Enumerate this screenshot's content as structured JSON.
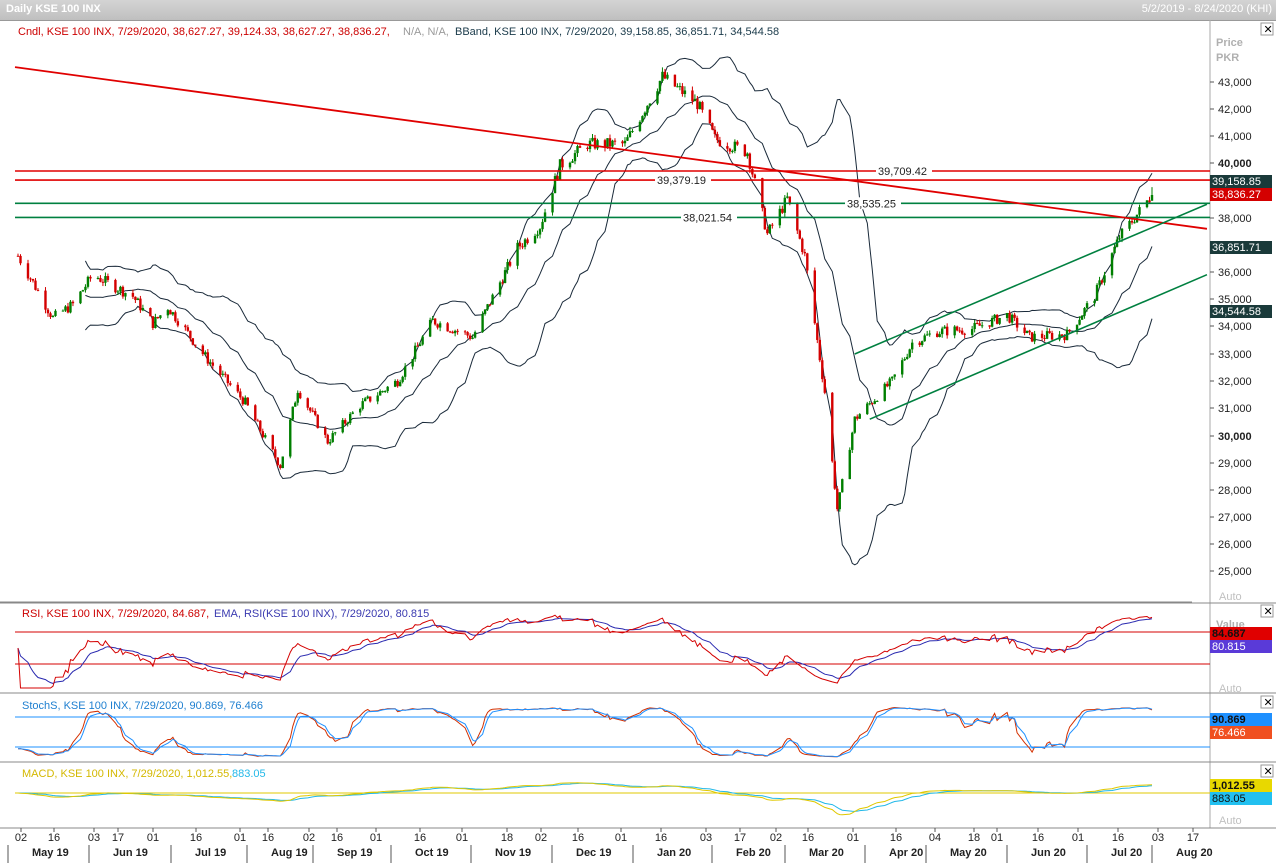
{
  "window": {
    "title": "Daily KSE 100 INX",
    "range": "5/2/2019 - 8/24/2020 (KHI)"
  },
  "legends": {
    "price_cndl": "Cndl, KSE 100 INX, 7/29/2020, 38,627.27, 39,124.33, 38,627.27, 38,836.27,",
    "price_na": "N/A, N/A,",
    "price_bband": "BBand, KSE 100 INX, 7/29/2020, 39,158.85, 36,851.71, 34,544.58",
    "rsi": "RSI, KSE 100 INX, 7/29/2020, 84.687,",
    "rsi_ema": "EMA, RSI(KSE 100 INX), 7/29/2020, 80.815",
    "stoch": "StochS, KSE 100 INX, 7/29/2020, 90.869, 76.466",
    "macd": "MACD, KSE 100 INX, 7/29/2020, 1,012.55,",
    "macd_sig": "883.05"
  },
  "axis": {
    "price_title": "Price",
    "price_unit": "PKR",
    "value_title": "Value",
    "auto": "Auto"
  },
  "badges": {
    "bb_upper": "39,158.85",
    "close": "38,836.27",
    "bb_mid": "36,851.71",
    "bb_lower": "34,544.58",
    "rsi": "84.687",
    "rsi_ema": "80.815",
    "stoch_k": "90.869",
    "stoch_d": "76.466",
    "macd": "1,012.55",
    "macd_sig": "883.05"
  },
  "colors": {
    "up": "#007f00",
    "down": "#d40000",
    "band": "#1a2a3a",
    "trend": "#e00000",
    "channel": "#008040",
    "rsi": "#d40000",
    "rsi_ema": "#2a2ab0",
    "stoch_k": "#d43000",
    "stoch_d": "#1e90ff",
    "macd": "#e0c800",
    "macd_sig": "#22b8e8"
  },
  "chart_data": {
    "type": "candlestick",
    "title": "Daily KSE 100 INX",
    "date_range": "5/2/2019 - 8/24/2020",
    "y_unit": "PKR",
    "ylim": [
      24400,
      44200
    ],
    "y_ticks": [
      25000,
      26000,
      27000,
      28000,
      29000,
      30000,
      31000,
      32000,
      33000,
      34000,
      35000,
      36000,
      38000,
      40000,
      41000,
      42000,
      43000
    ],
    "y_tick_labels": [
      "25,000",
      "26,000",
      "27,000",
      "28,000",
      "29,000",
      "30,000",
      "31,000",
      "32,000",
      "33,000",
      "34,000",
      "35,000",
      "36,000",
      "38,000",
      "40,000",
      "41,000",
      "42,000",
      "43,000"
    ],
    "x_day_ticks": [
      "02",
      "16",
      "03",
      "17",
      "01",
      "16",
      "01",
      "16",
      "02",
      "16",
      "01",
      "16",
      "01",
      "18",
      "02",
      "16",
      "01",
      "16",
      "03",
      "17",
      "02",
      "16",
      "01",
      "16",
      "04",
      "18",
      "01",
      "16",
      "01",
      "16",
      "03",
      "17"
    ],
    "x_month_labels": [
      "May 19",
      "Jun 19",
      "Jul 19",
      "Aug 19",
      "Sep 19",
      "Oct 19",
      "Nov 19",
      "Dec 19",
      "Jan 20",
      "Feb 20",
      "Mar 20",
      "Apr 20",
      "May 20",
      "Jun 20",
      "Jul 20",
      "Aug 20"
    ],
    "close_path": [
      {
        "date": "2019-05-02",
        "close": 36600
      },
      {
        "date": "2019-05-16",
        "close": 34300
      },
      {
        "date": "2019-05-24",
        "close": 34800
      },
      {
        "date": "2019-06-01",
        "close": 35900
      },
      {
        "date": "2019-06-17",
        "close": 35100
      },
      {
        "date": "2019-06-25",
        "close": 34100
      },
      {
        "date": "2019-07-01",
        "close": 34700
      },
      {
        "date": "2019-07-16",
        "close": 32900
      },
      {
        "date": "2019-08-01",
        "close": 31200
      },
      {
        "date": "2019-08-15",
        "close": 28900
      },
      {
        "date": "2019-08-22",
        "close": 31700
      },
      {
        "date": "2019-09-03",
        "close": 29800
      },
      {
        "date": "2019-09-16",
        "close": 31100
      },
      {
        "date": "2019-10-01",
        "close": 32000
      },
      {
        "date": "2019-10-15",
        "close": 34200
      },
      {
        "date": "2019-10-31",
        "close": 33600
      },
      {
        "date": "2019-11-18",
        "close": 36900
      },
      {
        "date": "2019-11-27",
        "close": 37700
      },
      {
        "date": "2019-12-05",
        "close": 39900
      },
      {
        "date": "2019-12-16",
        "close": 40700
      },
      {
        "date": "2019-12-31",
        "close": 40700
      },
      {
        "date": "2020-01-15",
        "close": 43200
      },
      {
        "date": "2020-01-29",
        "close": 42200
      },
      {
        "date": "2020-02-05",
        "close": 40900
      },
      {
        "date": "2020-02-18",
        "close": 40400
      },
      {
        "date": "2020-02-26",
        "close": 37400
      },
      {
        "date": "2020-03-05",
        "close": 38700
      },
      {
        "date": "2020-03-12",
        "close": 36600
      },
      {
        "date": "2020-03-20",
        "close": 31600
      },
      {
        "date": "2020-03-25",
        "close": 27300
      },
      {
        "date": "2020-04-01",
        "close": 30600
      },
      {
        "date": "2020-04-16",
        "close": 32000
      },
      {
        "date": "2020-04-24",
        "close": 33400
      },
      {
        "date": "2020-05-04",
        "close": 33800
      },
      {
        "date": "2020-05-18",
        "close": 33900
      },
      {
        "date": "2020-06-01",
        "close": 34400
      },
      {
        "date": "2020-06-10",
        "close": 33600
      },
      {
        "date": "2020-06-25",
        "close": 33700
      },
      {
        "date": "2020-07-06",
        "close": 35100
      },
      {
        "date": "2020-07-16",
        "close": 37300
      },
      {
        "date": "2020-07-29",
        "close": 38836
      }
    ],
    "last_candle": {
      "date": "2020-07-29",
      "open": 38627.27,
      "high": 39124.33,
      "low": 38627.27,
      "close": 38836.27
    },
    "bollinger_last": {
      "upper": 39158.85,
      "middle": 36851.71,
      "lower": 34544.58
    },
    "horizontal_levels": [
      {
        "value": 39709.42,
        "label": "39,709.42",
        "color": "red"
      },
      {
        "value": 39379.19,
        "label": "39,379.19",
        "color": "red"
      },
      {
        "value": 38535.25,
        "label": "38,535.25",
        "color": "green"
      },
      {
        "value": 38021.54,
        "label": "38,021.54",
        "color": "green"
      }
    ],
    "indicators": {
      "rsi": {
        "last": 84.687,
        "ema_last": 80.815,
        "levels": [
          70,
          30
        ],
        "tick": "50"
      },
      "stoch": {
        "k_last": 90.869,
        "d_last": 76.466,
        "levels": [
          80,
          20
        ]
      },
      "macd": {
        "macd_last": 1012.55,
        "signal_last": 883.05
      }
    }
  }
}
